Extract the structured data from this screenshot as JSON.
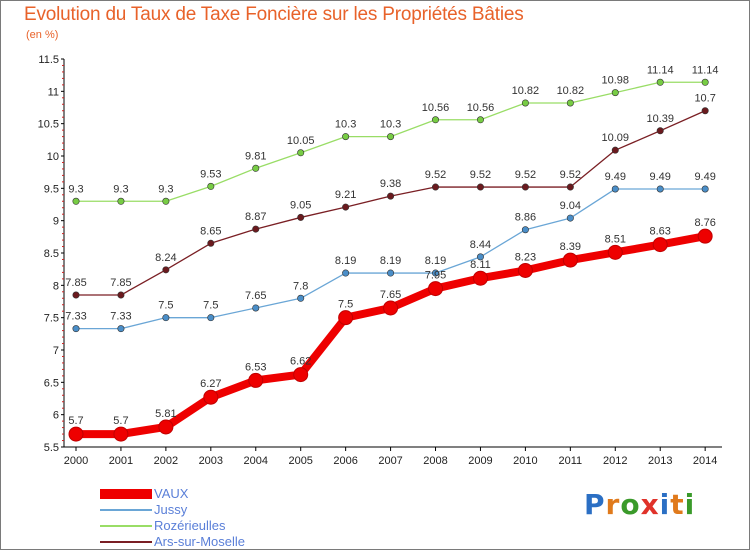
{
  "header": {
    "title": "Evolution du Taux de Taxe Foncière sur les Propriétés Bâties",
    "subtitle": "(en %)"
  },
  "logo": {
    "text": "Proxiti",
    "letters": [
      "P",
      "r",
      "o",
      "x",
      "i",
      "t",
      "i"
    ],
    "letter_colors": [
      "#2b6fc4",
      "#e07a1c",
      "#3a9a2a",
      "#e0322a",
      "#2b6fc4",
      "#e07a1c",
      "#3a9a2a"
    ]
  },
  "chart_data": {
    "type": "line",
    "title": "Evolution du Taux de Taxe Foncière sur les Propriétés Bâties",
    "subtitle": "(en %)",
    "xlabel": "",
    "ylabel": "",
    "ylim": [
      5.5,
      11.5
    ],
    "yticks": [
      "5.5",
      "6",
      "6.5",
      "7",
      "7.5",
      "8",
      "8.5",
      "9",
      "9.5",
      "10",
      "10.5",
      "11",
      "11.5"
    ],
    "grid": false,
    "legend_position": "bottom-left",
    "x": [
      "2000",
      "2001",
      "2002",
      "2003",
      "2004",
      "2005",
      "2006",
      "2007",
      "2008",
      "2009",
      "2010",
      "2011",
      "2012",
      "2013",
      "2014"
    ],
    "series": [
      {
        "name": "Ars-sur-Moselle",
        "color": "#7a1f24",
        "point_color": "#6b1a1e",
        "values": [
          7.85,
          7.85,
          8.24,
          8.65,
          8.87,
          9.05,
          9.21,
          9.38,
          9.52,
          9.52,
          9.52,
          9.52,
          10.09,
          10.39,
          10.7
        ],
        "labels": [
          "7.85",
          "7.85",
          "8.24",
          "8.65",
          "8.87",
          "9.05",
          "9.21",
          "9.38",
          "9.52",
          "9.52",
          "9.52",
          "9.52",
          "10.09",
          "10.39",
          "10.7"
        ]
      },
      {
        "name": "Rozérieulles",
        "color": "#99dd66",
        "point_color": "#77cc44",
        "values": [
          9.3,
          9.3,
          9.3,
          9.53,
          9.81,
          10.05,
          10.3,
          10.3,
          10.56,
          10.56,
          10.82,
          10.82,
          10.98,
          11.14,
          11.14
        ],
        "labels": [
          "9.3",
          "9.3",
          "9.3",
          "9.53",
          "9.81",
          "10.05",
          "10.3",
          "10.3",
          "10.56",
          "10.56",
          "10.82",
          "10.82",
          "10.98",
          "11.14",
          "11.14"
        ]
      },
      {
        "name": "Jussy",
        "color": "#6aa6d6",
        "point_color": "#4a8ec8",
        "values": [
          7.33,
          7.33,
          7.5,
          7.5,
          7.65,
          7.8,
          8.19,
          8.19,
          8.19,
          8.44,
          8.86,
          9.04,
          9.49,
          9.49,
          9.49
        ],
        "labels": [
          "7.33",
          "7.33",
          "7.5",
          "7.5",
          "7.65",
          "7.8",
          "8.19",
          "8.19",
          "8.19",
          "8.44",
          "8.86",
          "9.04",
          "9.49",
          "9.49",
          "9.49"
        ]
      },
      {
        "name": "VAUX",
        "color": "#ee0000",
        "point_color": "#ee0000",
        "values": [
          5.7,
          5.7,
          5.81,
          6.27,
          6.53,
          6.62,
          7.5,
          7.65,
          7.95,
          8.11,
          8.23,
          8.39,
          8.51,
          8.63,
          8.76
        ],
        "labels": [
          "5.7",
          "5.7",
          "5.81",
          "6.27",
          "6.53",
          "6.62",
          "7.5",
          "7.65",
          "7.95",
          "8.11",
          "8.23",
          "8.39",
          "8.51",
          "8.63",
          "8.76"
        ]
      }
    ],
    "legend": [
      {
        "name": "VAUX",
        "color": "#ee0000"
      },
      {
        "name": "Jussy",
        "color": "#6aa6d6"
      },
      {
        "name": "Rozérieulles",
        "color": "#99dd66"
      },
      {
        "name": "Ars-sur-Moselle",
        "color": "#7a1f24"
      }
    ]
  }
}
